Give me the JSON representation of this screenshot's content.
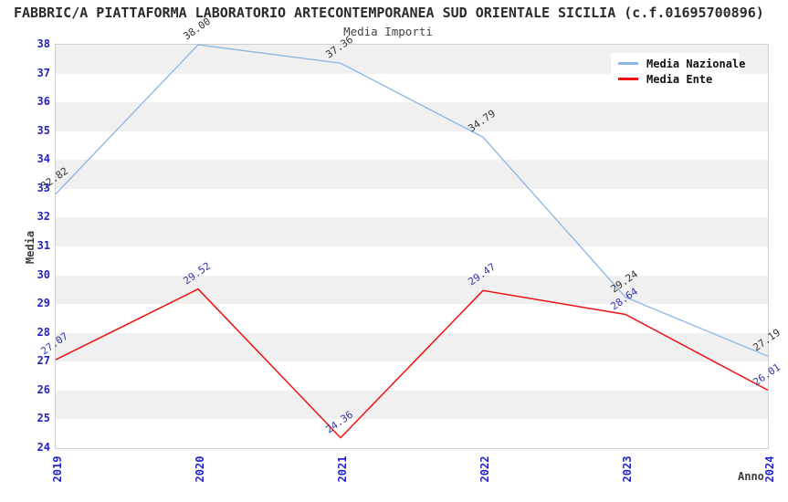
{
  "header": {
    "title": "FABBRIC/A PIATTAFORMA LABORATORIO ARTECONTEMPORANEA SUD ORIENTALE SICILIA (c.f.01695700896)"
  },
  "chart_data": {
    "type": "line",
    "title": "Media Importi",
    "xlabel": "Anno",
    "ylabel": "Media",
    "x": [
      2019,
      2020,
      2021,
      2022,
      2023,
      2024
    ],
    "xtick_labels": [
      "2019",
      "2020",
      "2021",
      "2022",
      "2023",
      "2024"
    ],
    "yticks": [
      24,
      25,
      26,
      27,
      28,
      29,
      30,
      31,
      32,
      33,
      34,
      35,
      36,
      37,
      38
    ],
    "ylim": [
      24,
      38
    ],
    "xlim": [
      2019,
      2024
    ],
    "grid": "alternating horizontal bands",
    "legend_position": "upper right",
    "value_label_decimals": 2,
    "series": [
      {
        "name": "Media Nazionale",
        "color": "#8ab5e6",
        "label_color": "#333333",
        "line_width": 1.3,
        "values": [
          32.82,
          38.0,
          37.36,
          34.79,
          29.24,
          27.19
        ]
      },
      {
        "name": "Media Ente",
        "color": "#ee1111",
        "label_color": "#3333aa",
        "line_width": 1.5,
        "values": [
          27.07,
          29.52,
          24.36,
          29.47,
          28.64,
          26.01
        ]
      }
    ],
    "colors": {
      "tick_label": "#2323cb",
      "band_gray": "#f0f0f0",
      "band_white": "#ffffff",
      "plot_border": "#cfcfcf"
    }
  }
}
